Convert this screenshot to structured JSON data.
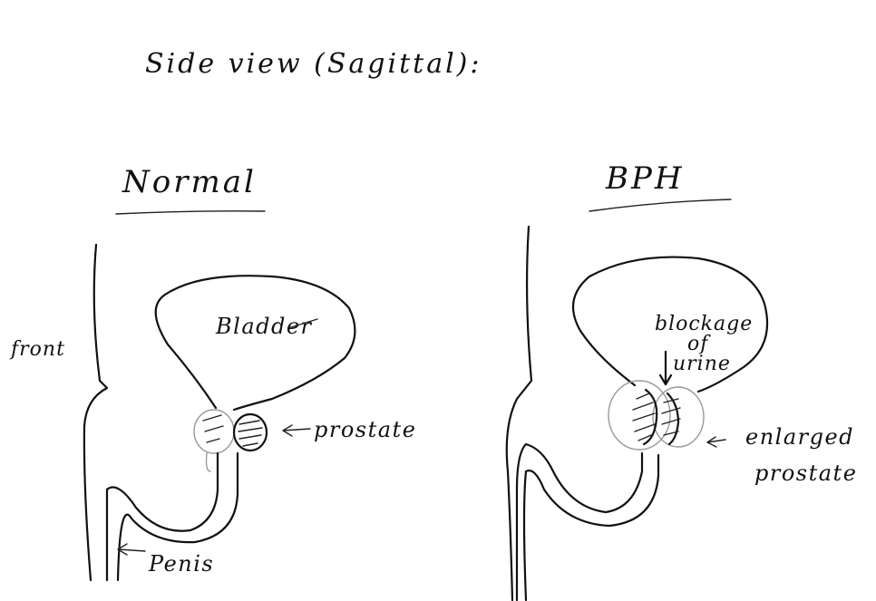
{
  "title": "Side view (Sagittal):",
  "panels": {
    "normal": {
      "heading": "Normal",
      "labels": {
        "bladder": "Bladder",
        "prostate": "prostate",
        "front": "front",
        "penis": "Penis"
      }
    },
    "bph": {
      "heading": "BPH",
      "labels": {
        "blockage": [
          "blockage",
          "of",
          "urine"
        ],
        "enlarged": [
          "enlarged",
          "prostate"
        ]
      }
    }
  },
  "colors": {
    "ink": "#111111",
    "faint": "#9a9a9a",
    "background": "#ffffff"
  }
}
